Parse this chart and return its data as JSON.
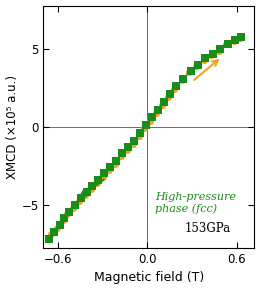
{
  "xlabel": "Magnetic field (T)",
  "ylabel": "XMCD (×10⁵ a.u.)",
  "xlim": [
    -0.7,
    0.72
  ],
  "ylim": [
    -7.8,
    7.8
  ],
  "xticks": [
    -0.6,
    0.0,
    0.6
  ],
  "yticks": [
    -5,
    0,
    5
  ],
  "annotation_text": "High-pressure\nphase (fcc)",
  "annotation_color": "#1a8c1a",
  "pressure_text": "153GPa",
  "green_color": "#1a8c1a",
  "orange_color": "#f5a020",
  "green_squares_x": [
    -0.66,
    -0.63,
    -0.59,
    -0.56,
    -0.53,
    -0.49,
    -0.45,
    -0.41,
    -0.37,
    -0.33,
    -0.29,
    -0.25,
    -0.21,
    -0.17,
    -0.13,
    -0.09,
    -0.05,
    -0.01,
    0.03,
    0.07,
    0.11,
    0.15,
    0.19,
    0.24,
    0.29,
    0.34,
    0.39,
    0.44,
    0.49,
    0.54,
    0.59,
    0.63
  ],
  "green_squares_y": [
    -7.2,
    -6.8,
    -6.3,
    -5.9,
    -5.5,
    -5.0,
    -4.6,
    -4.2,
    -3.8,
    -3.4,
    -3.0,
    -2.6,
    -2.2,
    -1.7,
    -1.3,
    -0.9,
    -0.4,
    0.1,
    0.6,
    1.1,
    1.6,
    2.1,
    2.6,
    3.1,
    3.6,
    4.0,
    4.4,
    4.7,
    5.0,
    5.3,
    5.6,
    5.8
  ],
  "orange_circles_x": [
    -0.65,
    -0.61,
    -0.57,
    -0.54,
    -0.5,
    -0.46,
    -0.42,
    -0.38,
    -0.34,
    -0.3,
    -0.26,
    -0.22,
    -0.18,
    -0.14,
    -0.1,
    -0.06,
    -0.02,
    0.02,
    0.06,
    0.1,
    0.14,
    0.18,
    0.23,
    0.28,
    0.33,
    0.38,
    0.43,
    0.48,
    0.53,
    0.58,
    0.62
  ],
  "orange_circles_y": [
    -6.9,
    -6.5,
    -6.0,
    -5.6,
    -5.2,
    -4.8,
    -4.4,
    -4.0,
    -3.6,
    -3.2,
    -2.8,
    -2.4,
    -1.9,
    -1.5,
    -1.1,
    -0.6,
    -0.1,
    0.4,
    0.9,
    1.4,
    1.9,
    2.4,
    3.0,
    3.5,
    3.9,
    4.3,
    4.6,
    4.9,
    5.3,
    5.5,
    5.7
  ]
}
